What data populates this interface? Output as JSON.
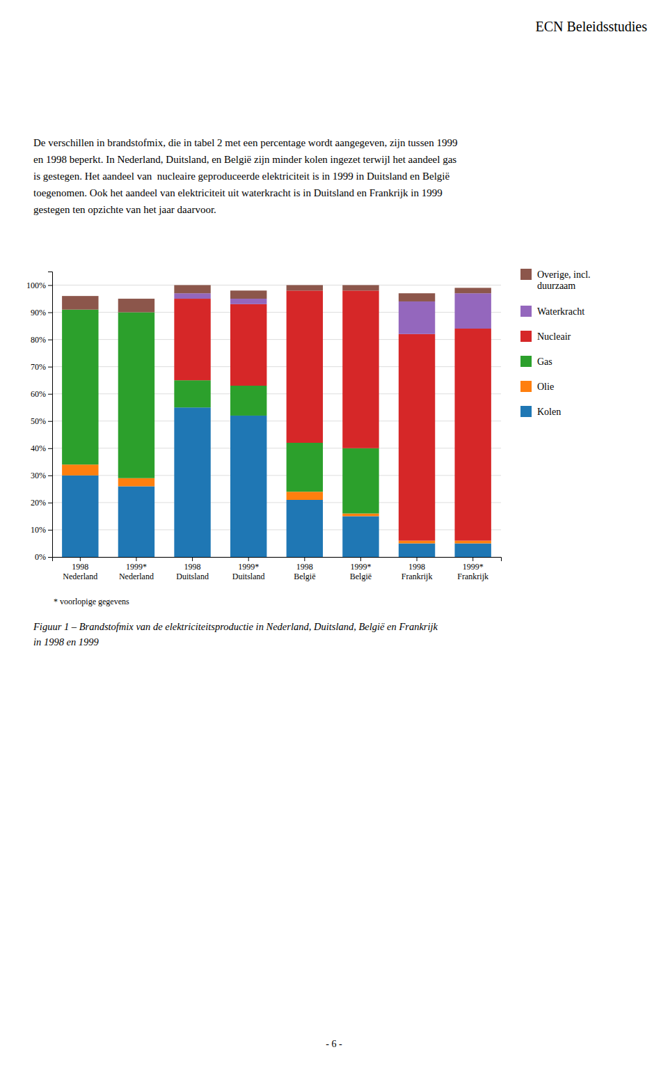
{
  "chart_data": {
    "type": "bar",
    "title": "ECN Beleidsstudies",
    "header_text": [
      "De verschillen in brandstofmix, die in tabel 2 met een percentage wordt aangegeven, zijn tussen 1999",
      "en 1998 beperkt. In Nederland, Duitsland, en België zijn minder kolen ingezet terwijl het aandeel gas",
      "is gestegen. Het aandeel van  nucleaire geproduceerde elektriciteit is in 1999 in Duitsland en België",
      "toegenomen. Ook het aandeel van elektriciteit uit waterkracht is in Duitsland en Frankrijk in 1999",
      "gestegen ten opzichte van het jaar daarvoor."
    ],
    "categories": [
      "1998\nNederland",
      "1999*\nNederland",
      "1998\nDuitsland",
      "1999*\nDuitsland",
      "1998\nBelgië",
      "1999*\nBelgië",
      "1998\nFrankrijk",
      "1999*\nFrankrijk"
    ],
    "series": [
      {
        "name": "Kolen",
        "values": [
          30,
          26,
          55,
          52,
          21,
          15,
          5,
          5
        ]
      },
      {
        "name": "Olie",
        "values": [
          4,
          3,
          0,
          0,
          3,
          1,
          1,
          1
        ]
      },
      {
        "name": "Gas",
        "values": [
          57,
          61,
          10,
          11,
          18,
          24,
          0,
          0
        ]
      },
      {
        "name": "Nucleair",
        "values": [
          0,
          0,
          30,
          30,
          56,
          58,
          76,
          78
        ]
      },
      {
        "name": "Waterkracht",
        "values": [
          0,
          0,
          2,
          2,
          0,
          0,
          12,
          13
        ]
      },
      {
        "name": "Overige, incl.\nduurzaam",
        "values": [
          5,
          5,
          3,
          3,
          2,
          2,
          3,
          2
        ]
      }
    ],
    "stacked": true,
    "ylim": [
      0,
      105
    ],
    "yticks": [
      {
        "value": 0,
        "label": "0%"
      },
      {
        "value": 10,
        "label": "10%"
      },
      {
        "value": 20,
        "label": "20%"
      },
      {
        "value": 30,
        "label": "30%"
      },
      {
        "value": 40,
        "label": "40%"
      },
      {
        "value": 50,
        "label": "50%"
      },
      {
        "value": 60,
        "label": "60%"
      },
      {
        "value": 70,
        "label": "70%"
      },
      {
        "value": 80,
        "label": "80%"
      },
      {
        "value": 90,
        "label": "90%"
      },
      {
        "value": 100,
        "label": "100%"
      }
    ],
    "grid": true,
    "legend": "right",
    "footnote": "* voorlopige gegevens",
    "caption": [
      "Figuur 1 – Brandstofmix van de elektriciteitsproductie in Nederland, Duitsland, België en Frankrijk",
      "in 1998 en 1999"
    ],
    "page_number": "- 6 -"
  }
}
